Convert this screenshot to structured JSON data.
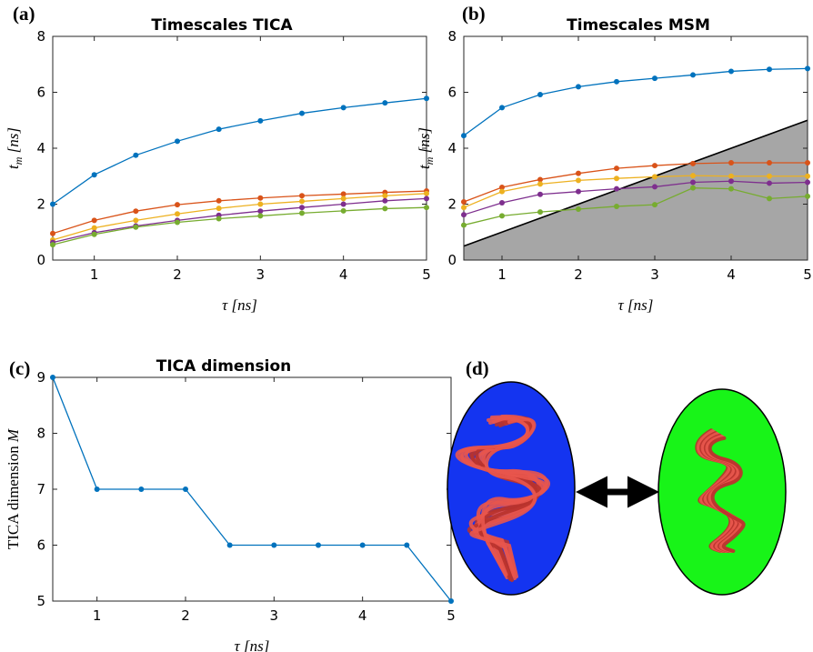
{
  "panels": {
    "a": {
      "letter": "(a)"
    },
    "b": {
      "letter": "(b)"
    },
    "c": {
      "letter": "(c)"
    },
    "d": {
      "letter": "(d)"
    }
  },
  "colors": {
    "blue": "#0072bd",
    "orange": "#d95319",
    "yellow": "#edb120",
    "purple": "#7e2f8e",
    "green": "#77ac30",
    "shade": "#a6a6a6",
    "ellipse_left": "#1434f0",
    "ellipse_right": "#18f418",
    "protein": "#e8554c"
  },
  "chart_data": [
    {
      "id": "a",
      "type": "line",
      "title": "Timescales TICA",
      "xlabel": {
        "sym": "τ",
        "unit": "[ns]"
      },
      "ylabel": {
        "sym": "t",
        "sub": "m",
        "unit": "[ns]"
      },
      "xlim": [
        0.5,
        5
      ],
      "ylim": [
        0,
        8
      ],
      "xticks": [
        1,
        2,
        3,
        4,
        5
      ],
      "yticks": [
        0,
        2,
        4,
        6,
        8
      ],
      "x": [
        0.5,
        1,
        1.5,
        2,
        2.5,
        3,
        3.5,
        4,
        4.5,
        5
      ],
      "grid": false,
      "series": [
        {
          "color": "blue",
          "values": [
            2.0,
            3.05,
            3.75,
            4.25,
            4.68,
            4.98,
            5.25,
            5.45,
            5.62,
            5.78
          ]
        },
        {
          "color": "orange",
          "values": [
            0.95,
            1.42,
            1.75,
            1.98,
            2.12,
            2.22,
            2.3,
            2.36,
            2.42,
            2.47
          ]
        },
        {
          "color": "yellow",
          "values": [
            0.72,
            1.15,
            1.42,
            1.65,
            1.85,
            2.0,
            2.1,
            2.2,
            2.3,
            2.38
          ]
        },
        {
          "color": "purple",
          "values": [
            0.63,
            0.98,
            1.22,
            1.42,
            1.6,
            1.75,
            1.88,
            2.0,
            2.12,
            2.2
          ]
        },
        {
          "color": "green",
          "values": [
            0.55,
            0.92,
            1.18,
            1.35,
            1.48,
            1.58,
            1.68,
            1.76,
            1.84,
            1.88
          ]
        }
      ]
    },
    {
      "id": "b",
      "type": "line",
      "title": "Timescales MSM",
      "xlabel": {
        "sym": "τ",
        "unit": "[ns]"
      },
      "ylabel": {
        "sym": "t",
        "sub": "m",
        "unit": "[ns]"
      },
      "xlim": [
        0.5,
        5
      ],
      "ylim": [
        0,
        8
      ],
      "xticks": [
        1,
        2,
        3,
        4,
        5
      ],
      "yticks": [
        0,
        2,
        4,
        6,
        8
      ],
      "x": [
        0.5,
        1,
        1.5,
        2,
        2.5,
        3,
        3.5,
        4,
        4.5,
        5
      ],
      "grid": false,
      "shaded_region": "t_m ≤ τ",
      "series": [
        {
          "color": "blue",
          "values": [
            4.45,
            5.45,
            5.92,
            6.2,
            6.38,
            6.5,
            6.62,
            6.75,
            6.82,
            6.85
          ]
        },
        {
          "color": "orange",
          "values": [
            2.08,
            2.6,
            2.88,
            3.1,
            3.28,
            3.38,
            3.45,
            3.48,
            3.48,
            3.48
          ]
        },
        {
          "color": "yellow",
          "values": [
            1.88,
            2.45,
            2.72,
            2.85,
            2.92,
            2.98,
            3.02,
            3.0,
            3.0,
            3.0
          ]
        },
        {
          "color": "purple",
          "values": [
            1.62,
            2.05,
            2.35,
            2.45,
            2.55,
            2.62,
            2.78,
            2.82,
            2.75,
            2.78
          ]
        },
        {
          "color": "green",
          "values": [
            1.25,
            1.58,
            1.72,
            1.82,
            1.92,
            1.98,
            2.58,
            2.55,
            2.2,
            2.28
          ]
        }
      ]
    },
    {
      "id": "c",
      "type": "line",
      "title": "TICA dimension",
      "xlabel": {
        "sym": "τ",
        "unit": "[ns]"
      },
      "ylabel": {
        "text": "TICA dimension",
        "sym": "M"
      },
      "xlim": [
        0.5,
        5
      ],
      "ylim": [
        5,
        9
      ],
      "xticks": [
        1,
        2,
        3,
        4,
        5
      ],
      "yticks": [
        5,
        6,
        7,
        8,
        9
      ],
      "x": [
        0.5,
        1,
        1.5,
        2,
        2.5,
        3,
        3.5,
        4,
        4.5,
        5
      ],
      "grid": false,
      "series": [
        {
          "color": "blue",
          "values": [
            9,
            7,
            7,
            7,
            6,
            6,
            6,
            6,
            6,
            5
          ]
        }
      ]
    }
  ]
}
